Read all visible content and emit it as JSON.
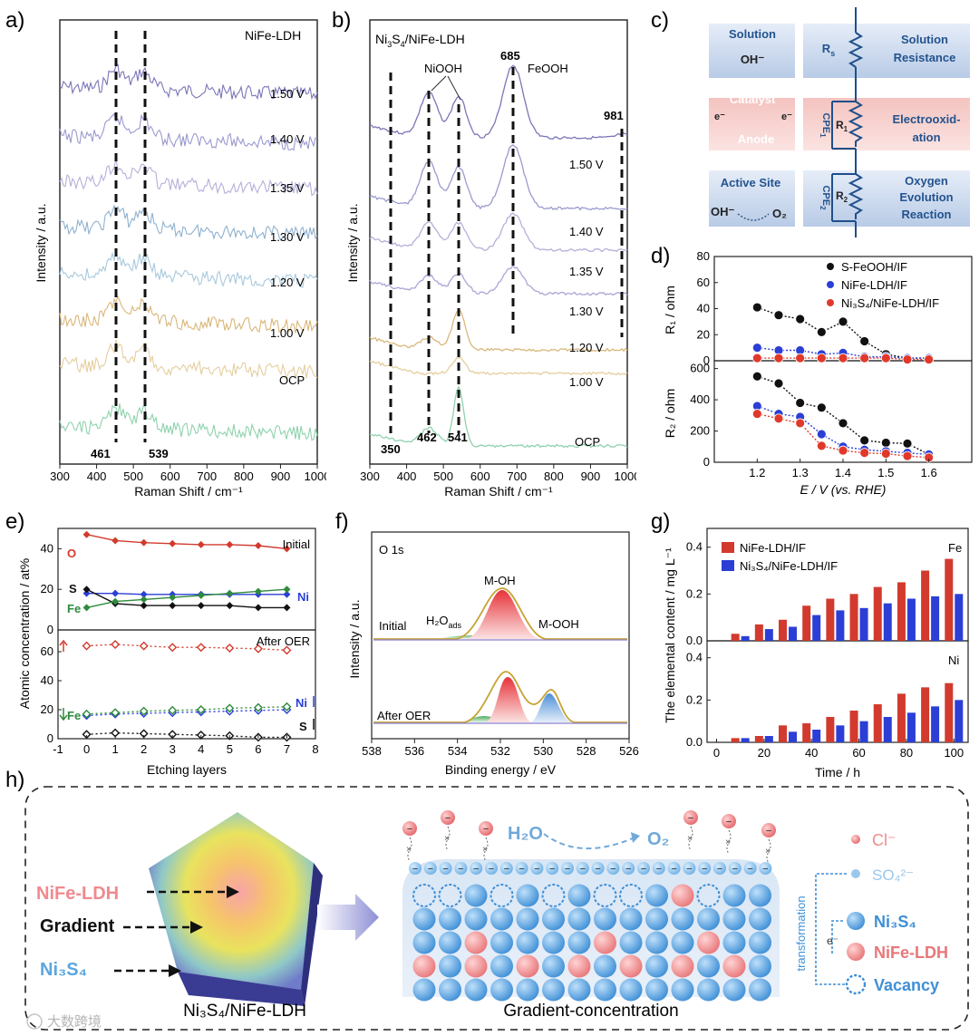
{
  "panels": {
    "a": "a)",
    "b": "b)",
    "c": "c)",
    "d": "d)",
    "e": "e)",
    "f": "f)",
    "g": "g)",
    "h": "h)"
  },
  "colors": {
    "purple": "#7b76b8",
    "lav": "#9a9ad0",
    "lightpurple": "#b4b0da",
    "blue2": "#8fb1cf",
    "lightblue": "#a9c9dd",
    "orange": "#d9b77a",
    "lightorange": "#e5ce9f",
    "green": "#8fd2ad",
    "red": "#d23a2e",
    "pink": "#f19b9b",
    "ni_blue": "#5aa6de",
    "box_blue": "#c9d8ee"
  },
  "raman_a": {
    "title": "NiFe-LDH",
    "xlabel": "Raman Shift / cm⁻¹",
    "ylabel": "Intensity / a.u.",
    "xticks": [
      "300",
      "400",
      "500",
      "600",
      "700",
      "800",
      "900",
      "1000"
    ],
    "curves": [
      "1.50 V",
      "1.40 V",
      "1.35 V",
      "1.30 V",
      "1.20 V",
      "1.00 V",
      "OCP"
    ],
    "peaks": [
      "461",
      "539"
    ]
  },
  "raman_b": {
    "title_main": "Ni",
    "title_sub1": "3",
    "title_mid": "S",
    "title_sub2": "4",
    "title_end": "/NiFe-LDH",
    "xlabel": "Raman Shift / cm⁻¹",
    "ylabel": "Intensity / a.u.",
    "xticks": [
      "300",
      "400",
      "500",
      "600",
      "700",
      "800",
      "900",
      "1000"
    ],
    "curves": [
      "1.50 V",
      "1.40 V",
      "1.35 V",
      "1.30 V",
      "1.20 V",
      "1.00 V",
      "OCP"
    ],
    "peaks": [
      "350",
      "462",
      "541",
      "685",
      "981"
    ],
    "labels": {
      "niooh": "NiOOH",
      "feooh": "FeOOH"
    }
  },
  "circuit": {
    "solution": "Solution",
    "oh": "OH⁻",
    "catalyst": "Catalyst",
    "anode": "Anode",
    "e": "e⁻",
    "active": "Active Site",
    "oh2": "OH⁻",
    "o2": "O₂",
    "rs": "R",
    "rs_sub": "s",
    "r1": "R",
    "r1_sub": "1",
    "r2": "R",
    "r2_sub": "2",
    "cpe1": "CPE",
    "cpe1_sub": "1",
    "cpe2": "CPE",
    "cpe2_sub": "2",
    "sol_res1": "Solution",
    "sol_res2": "Resistance",
    "electro1": "Electrooxid-",
    "electro2": "ation",
    "oer1": "Oxygen",
    "oer2": "Evolution",
    "oer3": "Reaction"
  },
  "chart_data": [
    {
      "id": "d_top",
      "type": "line",
      "ylabel": "R₁ / ohm",
      "ylim": [
        0,
        80
      ],
      "yticks": [
        "0",
        "20",
        "40",
        "60",
        "80"
      ],
      "x": [
        1.2,
        1.25,
        1.3,
        1.35,
        1.4,
        1.45,
        1.5,
        1.55,
        1.6
      ],
      "series": [
        {
          "name": "S-FeOOH/IF",
          "color": "#111111",
          "values": [
            41,
            35,
            32,
            22,
            30,
            15,
            5,
            2,
            2
          ]
        },
        {
          "name": "NiFe-LDH/IF",
          "color": "#2b3fd6",
          "values": [
            10,
            8,
            8,
            5,
            6,
            3,
            3,
            2,
            2
          ]
        },
        {
          "name": "Ni₃S₄/NiFe-LDH/IF",
          "color": "#e0392b",
          "values": [
            2,
            2,
            2,
            2,
            2,
            2,
            2,
            1,
            1
          ]
        }
      ]
    },
    {
      "id": "d_bottom",
      "type": "line",
      "xlabel": "E / V (vs. RHE)",
      "ylabel": "R₂ / ohm",
      "ylim": [
        0,
        650
      ],
      "yticks": [
        "0",
        "200",
        "400",
        "600"
      ],
      "xticks": [
        "1.2",
        "1.3",
        "1.4",
        "1.5",
        "1.6"
      ],
      "x": [
        1.2,
        1.25,
        1.3,
        1.35,
        1.4,
        1.45,
        1.5,
        1.55,
        1.6
      ],
      "series": [
        {
          "name": "S-FeOOH/IF",
          "color": "#111111",
          "values": [
            550,
            505,
            380,
            350,
            250,
            140,
            125,
            120,
            50
          ]
        },
        {
          "name": "NiFe-LDH/IF",
          "color": "#2b3fd6",
          "values": [
            360,
            310,
            290,
            180,
            100,
            80,
            70,
            60,
            50
          ]
        },
        {
          "name": "Ni₃S₄/NiFe-LDH/IF",
          "color": "#e0392b",
          "values": [
            310,
            280,
            250,
            105,
            75,
            60,
            55,
            40,
            30
          ]
        }
      ]
    },
    {
      "id": "e_top",
      "type": "line",
      "label": "Initial",
      "ylim": [
        0,
        50
      ],
      "yticks": [
        "0",
        "20",
        "40"
      ],
      "x": [
        0,
        1,
        2,
        3,
        4,
        5,
        6,
        7
      ],
      "series": [
        {
          "name": "O",
          "color": "#d23a2e",
          "values": [
            47,
            44,
            43,
            42.5,
            42,
            42,
            41.5,
            40
          ]
        },
        {
          "name": "Ni",
          "color": "#2b3fd6",
          "values": [
            18,
            18,
            17.5,
            17.5,
            17.5,
            17.5,
            17.5,
            17.5
          ]
        },
        {
          "name": "S",
          "color": "#111111",
          "values": [
            20,
            13,
            12,
            12,
            12,
            12,
            11,
            11
          ]
        },
        {
          "name": "Fe",
          "color": "#2e8b3c",
          "values": [
            11,
            14,
            15,
            16,
            17,
            18,
            19,
            20
          ]
        }
      ]
    },
    {
      "id": "e_bottom",
      "type": "line",
      "label": "After OER",
      "xlabel": "Etching layers",
      "ylim": [
        0,
        75
      ],
      "yticks": [
        "0",
        "20",
        "40",
        "60"
      ],
      "xticks": [
        "-1",
        "0",
        "1",
        "2",
        "3",
        "4",
        "5",
        "6",
        "7",
        "8"
      ],
      "x": [
        0,
        1,
        2,
        3,
        4,
        5,
        6,
        7
      ],
      "series": [
        {
          "name": "O",
          "color": "#d23a2e",
          "values": [
            64,
            65,
            64,
            63,
            63,
            62.5,
            62,
            61
          ]
        },
        {
          "name": "Ni",
          "color": "#2b3fd6",
          "values": [
            16,
            17,
            17.5,
            18,
            18.5,
            19,
            19.5,
            20
          ]
        },
        {
          "name": "S",
          "color": "#111111",
          "values": [
            3,
            4,
            3.5,
            3,
            2.5,
            2,
            1,
            1
          ]
        },
        {
          "name": "Fe",
          "color": "#2e8b3c",
          "values": [
            17,
            18,
            19,
            19.5,
            20,
            21,
            21.5,
            22
          ]
        }
      ]
    },
    {
      "id": "g_top",
      "type": "bar",
      "label": "Fe",
      "ylim": [
        0,
        0.48
      ],
      "yticks": [
        "0.0",
        "0.2",
        "0.4"
      ],
      "x": [
        10,
        20,
        30,
        40,
        50,
        60,
        70,
        80,
        90,
        100
      ],
      "series": [
        {
          "name": "NiFe-LDH/IF",
          "color": "#d23a2e",
          "values": [
            0.03,
            0.07,
            0.09,
            0.15,
            0.18,
            0.2,
            0.23,
            0.25,
            0.3,
            0.35
          ]
        },
        {
          "name": "Ni₃S₄/NiFe-LDH/IF",
          "color": "#2b3fd6",
          "values": [
            0.02,
            0.05,
            0.06,
            0.11,
            0.13,
            0.14,
            0.16,
            0.18,
            0.19,
            0.2
          ]
        }
      ]
    },
    {
      "id": "g_bottom",
      "type": "bar",
      "label": "Ni",
      "xlabel": "Time / h",
      "ylim": [
        0,
        0.48
      ],
      "yticks": [
        "0.0",
        "0.2",
        "0.4"
      ],
      "xticks": [
        "0",
        "20",
        "40",
        "60",
        "80",
        "100"
      ],
      "x": [
        10,
        20,
        30,
        40,
        50,
        60,
        70,
        80,
        90,
        100
      ],
      "series": [
        {
          "name": "NiFe-LDH/IF",
          "color": "#d23a2e",
          "values": [
            0.02,
            0.03,
            0.08,
            0.09,
            0.12,
            0.15,
            0.18,
            0.23,
            0.26,
            0.28
          ]
        },
        {
          "name": "Ni₃S₄/NiFe-LDH/IF",
          "color": "#2b3fd6",
          "values": [
            0.02,
            0.03,
            0.05,
            0.06,
            0.08,
            0.1,
            0.12,
            0.14,
            0.17,
            0.2
          ]
        }
      ]
    }
  ],
  "d_panel": {
    "xlabel": "E / V (vs. RHE)"
  },
  "e_panel": {
    "ylabel": "Atomic concentration / at%",
    "xlabel": "Etching layers",
    "initial": "Initial",
    "after": "After OER"
  },
  "xps": {
    "title": "O 1s",
    "xlabel": "Binding energy / eV",
    "ylabel": "Intensity / a.u.",
    "xticks": [
      "538",
      "536",
      "534",
      "532",
      "530",
      "528",
      "526"
    ],
    "initial": "Initial",
    "after": "After OER",
    "moh": "M-OH",
    "mooh": "M-OOH",
    "h2o": "H₂O",
    "h2o_sub": "ads"
  },
  "g_panel": {
    "ylabel": "The elemental content  / mg L⁻¹",
    "xlabel": "Time / h",
    "fe": "Fe",
    "ni": "Ni"
  },
  "scheme": {
    "nife": "NiFe-LDH",
    "gradient": "Gradient",
    "ni3s4": "Ni₃S₄",
    "caption1": "Ni₃S₄/NiFe-LDH",
    "caption2": "Gradient-concentration",
    "h2o": "H₂O",
    "o2": "O₂",
    "minus": "−",
    "legend": {
      "cl": "Cl⁻",
      "so4": "SO₄²⁻",
      "ni3s4": "Ni₃S₄",
      "nife": "NiFe-LDH",
      "vac": "Vacancy",
      "transform": "transformation",
      "e": "e⁻"
    }
  },
  "watermark": "大数跨境"
}
